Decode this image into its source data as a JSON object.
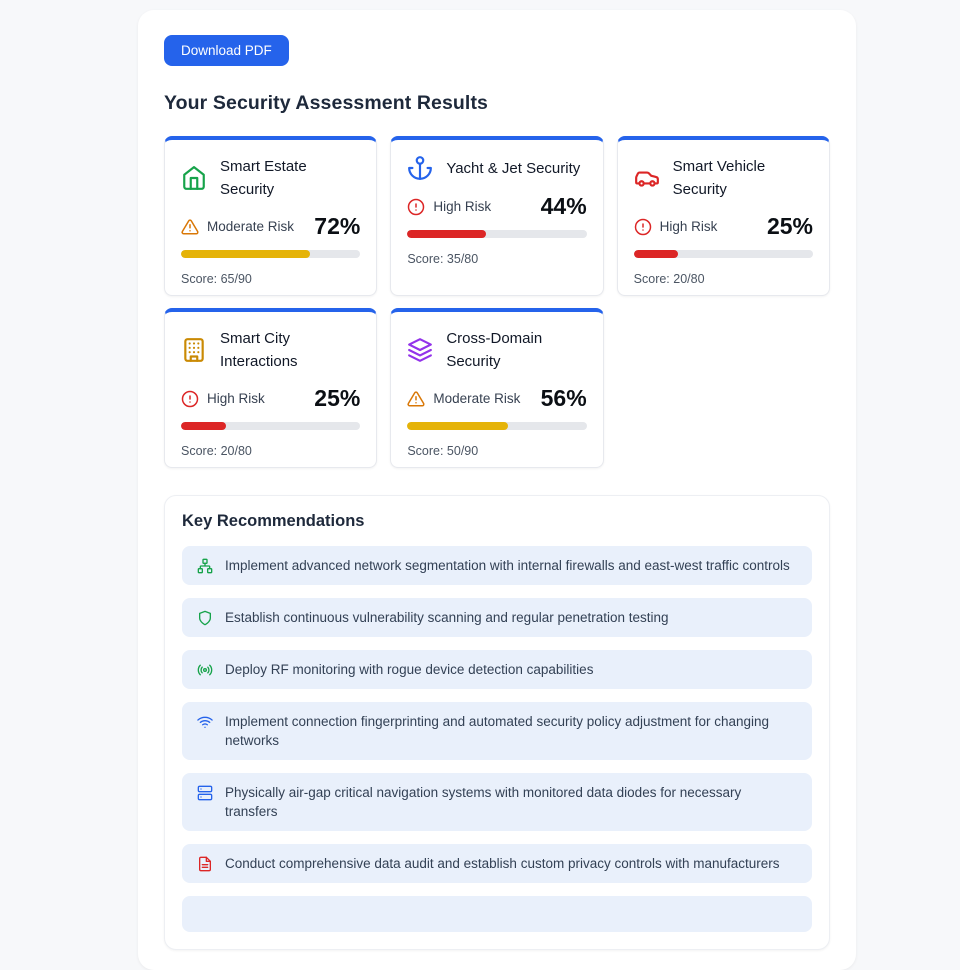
{
  "colors": {
    "accent_blue": "#2563eb",
    "risk_high": "#dc2626",
    "risk_moderate": "#d97706",
    "bar_red": "#dc2626",
    "bar_yellow": "#e5b308",
    "item_bg": "#e9f0fb",
    "green": "#16a34a",
    "purple": "#9333ea",
    "gold": "#ca8a04"
  },
  "header": {
    "download_button": "Download PDF",
    "title": "Your Security Assessment Results"
  },
  "cards": [
    {
      "title": "Smart Estate Security",
      "icon": "home-icon",
      "icon_color": "#16a34a",
      "risk_label": "Moderate Risk",
      "risk_icon": "alert-triangle-icon",
      "risk_color": "#d97706",
      "percent": 72,
      "percent_label": "72%",
      "bar_color": "#e5b308",
      "score_label": "Score: 65/90"
    },
    {
      "title": "Yacht & Jet Security",
      "icon": "anchor-icon",
      "icon_color": "#2563eb",
      "risk_label": "High Risk",
      "risk_icon": "alert-circle-icon",
      "risk_color": "#dc2626",
      "percent": 44,
      "percent_label": "44%",
      "bar_color": "#dc2626",
      "score_label": "Score: 35/80"
    },
    {
      "title": "Smart Vehicle Security",
      "icon": "car-icon",
      "icon_color": "#dc2626",
      "risk_label": "High Risk",
      "risk_icon": "alert-circle-icon",
      "risk_color": "#dc2626",
      "percent": 25,
      "percent_label": "25%",
      "bar_color": "#dc2626",
      "score_label": "Score: 20/80"
    },
    {
      "title": "Smart City Interactions",
      "icon": "building-icon",
      "icon_color": "#ca8a04",
      "risk_label": "High Risk",
      "risk_icon": "alert-circle-icon",
      "risk_color": "#dc2626",
      "percent": 25,
      "percent_label": "25%",
      "bar_color": "#dc2626",
      "score_label": "Score: 20/80"
    },
    {
      "title": "Cross-Domain Security",
      "icon": "layers-icon",
      "icon_color": "#9333ea",
      "risk_label": "Moderate Risk",
      "risk_icon": "alert-triangle-icon",
      "risk_color": "#d97706",
      "percent": 56,
      "percent_label": "56%",
      "bar_color": "#e5b308",
      "score_label": "Score: 50/90"
    }
  ],
  "recommendations": {
    "title": "Key Recommendations",
    "items": [
      {
        "text": "Implement advanced network segmentation with internal firewalls and east-west traffic controls",
        "icon": "network-icon",
        "icon_color": "#16a34a"
      },
      {
        "text": "Establish continuous vulnerability scanning and regular penetration testing",
        "icon": "shield-icon",
        "icon_color": "#16a34a"
      },
      {
        "text": "Deploy RF monitoring with rogue device detection capabilities",
        "icon": "radio-icon",
        "icon_color": "#16a34a"
      },
      {
        "text": "Implement connection fingerprinting and automated security policy adjustment for changing networks",
        "icon": "wifi-icon",
        "icon_color": "#2563eb"
      },
      {
        "text": "Physically air-gap critical navigation systems with monitored data diodes for necessary transfers",
        "icon": "server-icon",
        "icon_color": "#2563eb"
      },
      {
        "text": "Conduct comprehensive data audit and establish custom privacy controls with manufacturers",
        "icon": "file-text-icon",
        "icon_color": "#dc2626"
      }
    ],
    "partial_item_visible": true
  }
}
